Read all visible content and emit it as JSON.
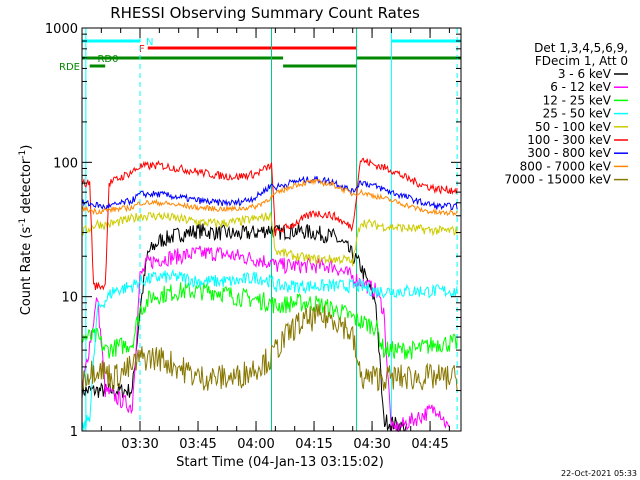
{
  "chart_data": {
    "type": "line",
    "title": "RHESSI Observing Summary Count Rates",
    "xlabel": "Start Time (04-Jan-13 03:15:02)",
    "ylabel_main": "Count Rate (s",
    "ylabel_exp1": "-1",
    "ylabel_mid": " detector",
    "ylabel_exp2": "-1",
    "ylabel_end": ")",
    "yscale": "log",
    "ylim": [
      1,
      1000
    ],
    "xlim_minutes": [
      0,
      98
    ],
    "x_ticks": [
      {
        "label": "03:30",
        "m": 15
      },
      {
        "label": "03:45",
        "m": 30
      },
      {
        "label": "04:00",
        "m": 45
      },
      {
        "label": "04:15",
        "m": 60
      },
      {
        "label": "04:30",
        "m": 75
      },
      {
        "label": "04:45",
        "m": 90
      }
    ],
    "y_ticks": [
      {
        "label": "1",
        "v": 1
      },
      {
        "label": "10",
        "v": 10
      },
      {
        "label": "100",
        "v": 100
      },
      {
        "label": "1000",
        "v": 1000
      }
    ],
    "legend": {
      "header1": "Det 1,3,4,5,6,9,",
      "header2": "FDecim 1, Att 0",
      "position": "right"
    },
    "series": [
      {
        "name": "3 - 6 keV",
        "color": "#000000",
        "points": [
          [
            0,
            2
          ],
          [
            13,
            2
          ],
          [
            15,
            8
          ],
          [
            17,
            21
          ],
          [
            20,
            26
          ],
          [
            25,
            29
          ],
          [
            30,
            31
          ],
          [
            35,
            30
          ],
          [
            40,
            29
          ],
          [
            45,
            30
          ],
          [
            49,
            32
          ],
          [
            50,
            30
          ],
          [
            55,
            31
          ],
          [
            60,
            30
          ],
          [
            65,
            28
          ],
          [
            68,
            24
          ],
          [
            72,
            17
          ],
          [
            76,
            9
          ],
          [
            78,
            1.2
          ],
          [
            82,
            1.1
          ],
          [
            84,
            1
          ]
        ]
      },
      {
        "name": "6 - 12 keV",
        "color": "#ff00ff",
        "points": [
          [
            0,
            2
          ],
          [
            4,
            10
          ],
          [
            6,
            2
          ],
          [
            13,
            1.5
          ],
          [
            15,
            14
          ],
          [
            17,
            18
          ],
          [
            20,
            19
          ],
          [
            25,
            20
          ],
          [
            30,
            21
          ],
          [
            35,
            21
          ],
          [
            40,
            20
          ],
          [
            45,
            19
          ],
          [
            49,
            18
          ],
          [
            50,
            17
          ],
          [
            55,
            17
          ],
          [
            60,
            17
          ],
          [
            65,
            17
          ],
          [
            68,
            15
          ],
          [
            72,
            13
          ],
          [
            76,
            11
          ],
          [
            78,
            8
          ],
          [
            80,
            1
          ],
          [
            92,
            1.5
          ],
          [
            95,
            1
          ]
        ]
      },
      {
        "name": "12 - 25 keV",
        "color": "#00ff00",
        "points": [
          [
            0,
            5
          ],
          [
            4,
            5
          ],
          [
            6,
            4
          ],
          [
            13,
            4.5
          ],
          [
            15,
            8
          ],
          [
            18,
            10
          ],
          [
            25,
            11
          ],
          [
            30,
            11
          ],
          [
            35,
            11
          ],
          [
            40,
            10
          ],
          [
            45,
            9.5
          ],
          [
            49,
            9
          ],
          [
            50,
            8.5
          ],
          [
            55,
            9
          ],
          [
            60,
            9
          ],
          [
            65,
            8
          ],
          [
            68,
            7.5
          ],
          [
            72,
            6.5
          ],
          [
            76,
            6
          ],
          [
            78,
            4
          ],
          [
            82,
            4
          ],
          [
            86,
            4
          ],
          [
            92,
            4.5
          ],
          [
            97,
            4.5
          ]
        ]
      },
      {
        "name": "25 - 50 keV",
        "color": "#00ffff",
        "points": [
          [
            0,
            1
          ],
          [
            2,
            1.3
          ],
          [
            4,
            8
          ],
          [
            8,
            11
          ],
          [
            13,
            12
          ],
          [
            15,
            13
          ],
          [
            20,
            14
          ],
          [
            25,
            14
          ],
          [
            30,
            13
          ],
          [
            35,
            13
          ],
          [
            40,
            13
          ],
          [
            45,
            14
          ],
          [
            49,
            13
          ],
          [
            50,
            12
          ],
          [
            55,
            12
          ],
          [
            60,
            12
          ],
          [
            65,
            12
          ],
          [
            68,
            12
          ],
          [
            72,
            12
          ],
          [
            76,
            11
          ],
          [
            78,
            11
          ],
          [
            82,
            11
          ],
          [
            86,
            11
          ],
          [
            92,
            11
          ],
          [
            97,
            11
          ]
        ]
      },
      {
        "name": "50 - 100 keV",
        "color": "#cccc00",
        "points": [
          [
            0,
            30
          ],
          [
            4,
            35
          ],
          [
            6,
            34
          ],
          [
            13,
            38
          ],
          [
            15,
            40
          ],
          [
            20,
            40
          ],
          [
            25,
            38
          ],
          [
            30,
            36
          ],
          [
            35,
            35
          ],
          [
            40,
            36
          ],
          [
            45,
            38
          ],
          [
            49,
            40
          ],
          [
            50,
            22
          ],
          [
            55,
            20
          ],
          [
            60,
            19
          ],
          [
            65,
            19
          ],
          [
            68,
            19
          ],
          [
            70,
            18
          ],
          [
            72,
            36
          ],
          [
            76,
            34
          ],
          [
            80,
            33
          ],
          [
            86,
            32
          ],
          [
            92,
            31
          ],
          [
            97,
            31
          ]
        ]
      },
      {
        "name": "100 - 300 keV",
        "color": "#ff0000",
        "points": [
          [
            0,
            70
          ],
          [
            2,
            70
          ],
          [
            3,
            12
          ],
          [
            6,
            12
          ],
          [
            7,
            70
          ],
          [
            13,
            85
          ],
          [
            15,
            93
          ],
          [
            20,
            95
          ],
          [
            25,
            90
          ],
          [
            30,
            85
          ],
          [
            35,
            80
          ],
          [
            40,
            78
          ],
          [
            45,
            82
          ],
          [
            49,
            95
          ],
          [
            50,
            30
          ],
          [
            55,
            35
          ],
          [
            60,
            42
          ],
          [
            65,
            40
          ],
          [
            68,
            35
          ],
          [
            70,
            33
          ],
          [
            72,
            105
          ],
          [
            76,
            95
          ],
          [
            80,
            88
          ],
          [
            84,
            76
          ],
          [
            88,
            68
          ],
          [
            92,
            63
          ],
          [
            97,
            62
          ]
        ]
      },
      {
        "name": "300 - 800 keV",
        "color": "#0000ff",
        "points": [
          [
            0,
            50
          ],
          [
            4,
            48
          ],
          [
            6,
            46
          ],
          [
            13,
            52
          ],
          [
            15,
            58
          ],
          [
            20,
            58
          ],
          [
            25,
            55
          ],
          [
            30,
            52
          ],
          [
            35,
            50
          ],
          [
            40,
            50
          ],
          [
            45,
            55
          ],
          [
            49,
            68
          ],
          [
            50,
            65
          ],
          [
            55,
            72
          ],
          [
            60,
            75
          ],
          [
            65,
            72
          ],
          [
            68,
            65
          ],
          [
            70,
            60
          ],
          [
            72,
            72
          ],
          [
            76,
            66
          ],
          [
            80,
            60
          ],
          [
            84,
            55
          ],
          [
            88,
            50
          ],
          [
            92,
            47
          ],
          [
            97,
            47
          ]
        ]
      },
      {
        "name": "800 - 7000 keV",
        "color": "#ff8800",
        "points": [
          [
            0,
            45
          ],
          [
            4,
            43
          ],
          [
            6,
            44
          ],
          [
            13,
            46
          ],
          [
            15,
            50
          ],
          [
            20,
            50
          ],
          [
            25,
            48
          ],
          [
            30,
            46
          ],
          [
            35,
            45
          ],
          [
            40,
            45
          ],
          [
            45,
            47
          ],
          [
            49,
            55
          ],
          [
            50,
            58
          ],
          [
            55,
            68
          ],
          [
            60,
            72
          ],
          [
            65,
            68
          ],
          [
            68,
            62
          ],
          [
            70,
            58
          ],
          [
            72,
            60
          ],
          [
            76,
            56
          ],
          [
            80,
            52
          ],
          [
            84,
            48
          ],
          [
            88,
            44
          ],
          [
            92,
            42
          ],
          [
            97,
            42
          ]
        ]
      },
      {
        "name": "7000 - 15000 keV",
        "color": "#887700",
        "points": [
          [
            0,
            2.5
          ],
          [
            4,
            3
          ],
          [
            8,
            2.5
          ],
          [
            13,
            3
          ],
          [
            15,
            3.5
          ],
          [
            20,
            3.5
          ],
          [
            25,
            3
          ],
          [
            30,
            2.5
          ],
          [
            35,
            2.5
          ],
          [
            40,
            2.5
          ],
          [
            45,
            3
          ],
          [
            49,
            3.5
          ],
          [
            50,
            4
          ],
          [
            55,
            6
          ],
          [
            60,
            7
          ],
          [
            65,
            7
          ],
          [
            68,
            6
          ],
          [
            70,
            5
          ],
          [
            72,
            2.5
          ],
          [
            76,
            2.5
          ],
          [
            80,
            2.5
          ],
          [
            86,
            2.5
          ],
          [
            92,
            2.5
          ],
          [
            97,
            2.5
          ]
        ]
      }
    ],
    "flag_bars": [
      {
        "label": "N",
        "color": "#00ffff",
        "segments": [
          [
            0,
            15
          ],
          [
            80,
            98
          ]
        ]
      },
      {
        "label": "F",
        "color": "#ff0000",
        "segments": [
          [
            17,
            71
          ]
        ]
      },
      {
        "label": "RD0",
        "color": "#008800",
        "segments": [
          [
            0,
            52
          ],
          [
            71,
            98
          ]
        ]
      },
      {
        "label": "RDE",
        "color": "#008800",
        "segments": [
          [
            2,
            6
          ],
          [
            52,
            71
          ]
        ]
      }
    ],
    "vlines": [
      {
        "m": 1,
        "color": "#00ffff",
        "style": "solid"
      },
      {
        "m": 15,
        "color": "#00ffff",
        "style": "dashed"
      },
      {
        "m": 80,
        "color": "#00ffff",
        "style": "solid"
      },
      {
        "m": 97,
        "color": "#00ffff",
        "style": "dashed"
      },
      {
        "m": 49,
        "color": "#00cc88",
        "style": "solid"
      },
      {
        "m": 71,
        "color": "#00cc88",
        "style": "solid"
      }
    ],
    "grid": false
  },
  "footer": {
    "date_stamp": "22-Oct-2021 05:33"
  }
}
